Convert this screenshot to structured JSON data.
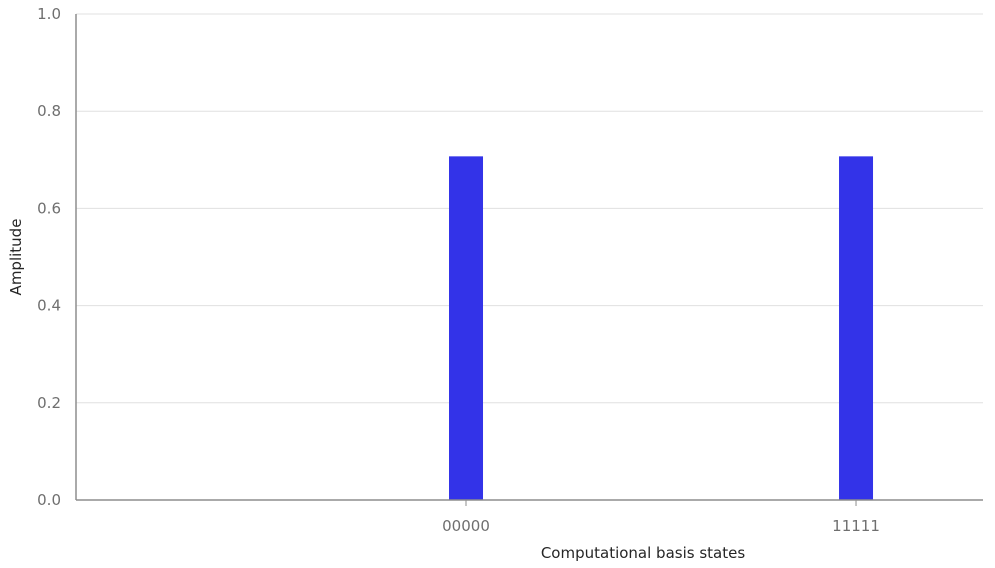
{
  "chart_data": {
    "type": "bar",
    "categories": [
      "00000",
      "11111"
    ],
    "values": [
      0.7071,
      0.7071
    ],
    "title": "",
    "xlabel": "Computational basis states",
    "ylabel": "Amplitude",
    "ylim": [
      0,
      1
    ],
    "yticks": [
      "0.0",
      "0.2",
      "0.4",
      "0.6",
      "0.8",
      "1.0"
    ],
    "grid": true,
    "bar_color": "#3333e8"
  }
}
